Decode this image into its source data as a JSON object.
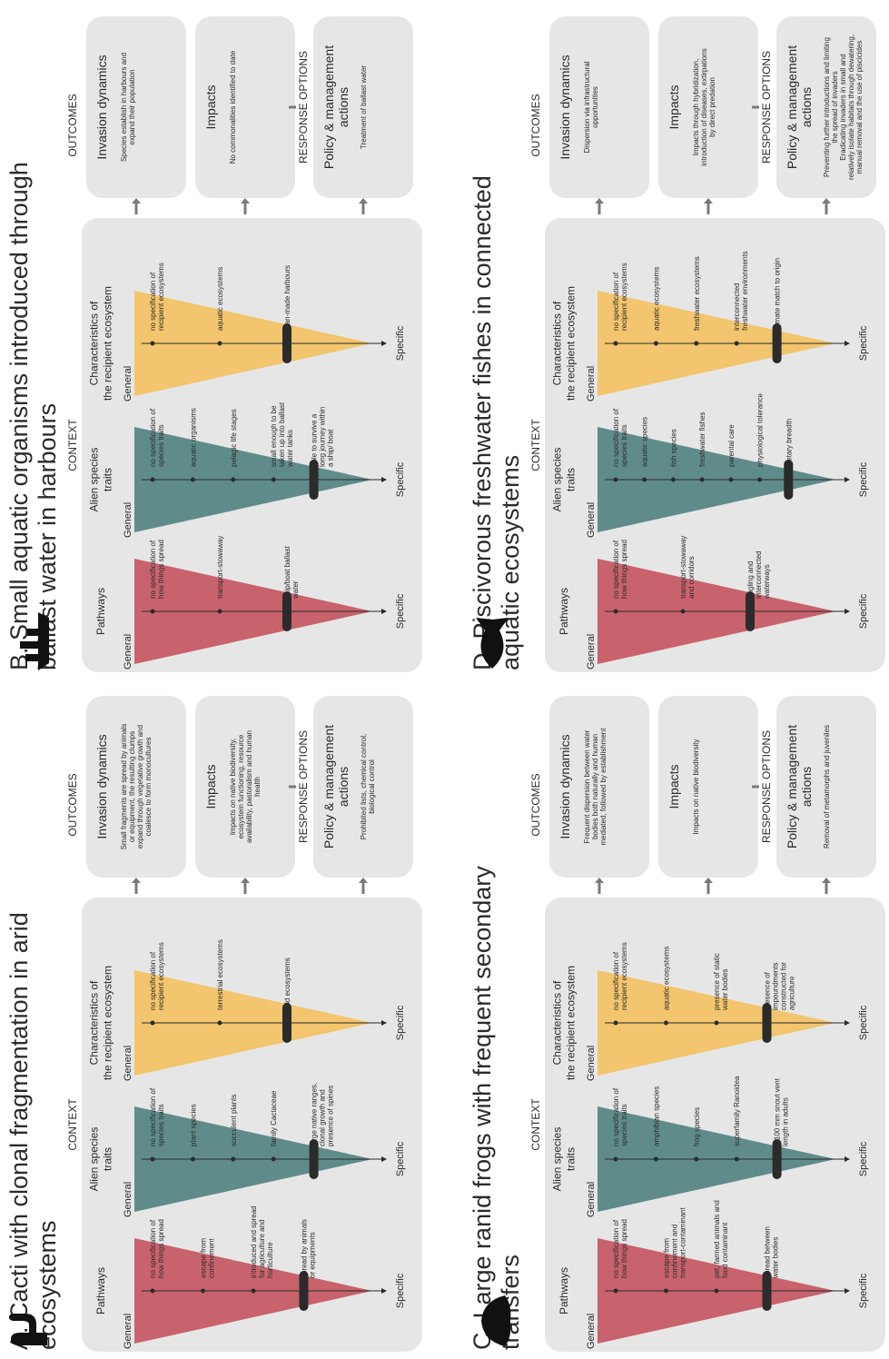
{
  "labels": {
    "context": "CONTEXT",
    "outcomes": "OUTCOMES",
    "response_options": "RESPONSE OPTIONS",
    "general": "General",
    "specific": "Specific",
    "pathways": "Pathways",
    "alien_traits": [
      "Alien species",
      "traits"
    ],
    "recipient": [
      "Characteristics of",
      "the recipient ecosystem"
    ],
    "invasion_dynamics": "Invasion dynamics",
    "impacts": "Impacts",
    "policy": [
      "Policy & management",
      "actions"
    ]
  },
  "colors": {
    "pathways": "#c8626c",
    "traits": "#5f8c8a",
    "recipient": "#f2c56e",
    "panel": "#e6e6e6",
    "marker": "#2b2b2b",
    "arrow": "#7a7a7a"
  },
  "panels": [
    {
      "id": "A",
      "title": [
        "A. Cacti with clonal fragmentation in arid",
        "ecosystems"
      ],
      "icon": "cactus-icon",
      "pathways": {
        "notes": [
          [
            "no specification of",
            "how things spread"
          ],
          [
            "escape from",
            "confinement"
          ],
          [
            "introduced and spread",
            "for agriculture and",
            "horticulture"
          ],
          [
            "spread by animals",
            "or equipments"
          ]
        ],
        "level": 4
      },
      "traits": {
        "notes": [
          [
            "no specification of",
            "species traits"
          ],
          [
            "plant species"
          ],
          [
            "succulent plants"
          ],
          [
            "family Cactaceae"
          ],
          [
            "large native ranges,",
            "clonal growth and",
            "presence of spines"
          ]
        ],
        "level": 5
      },
      "recipient": {
        "notes": [
          [
            "no specification of",
            "recipient ecosystems"
          ],
          [
            "terrestrial ecosystems"
          ],
          [
            "arid ecosystems"
          ]
        ],
        "level": 3
      },
      "invasion_text": [
        "Small fragments are spread by animals",
        "or equipment, the resulting clumps",
        "expand through vegetative growth and",
        "coalesce to form monocultures"
      ],
      "impacts_text": [
        "Impacts on native biodiversity,",
        "ecosystem functioning, resource",
        "availability, pastoralism and human",
        "health"
      ],
      "policy_text": [
        "Prohibited lists, chemical control,",
        "biological control"
      ]
    },
    {
      "id": "B",
      "title": [
        "B. Small aquatic organisms introduced through",
        "ballast water in harbours"
      ],
      "icon": "ship-icon",
      "pathways": {
        "notes": [
          [
            "no specification of",
            "how things spread"
          ],
          [
            "transport-stowaway"
          ],
          [
            "ship/boat ballast",
            "water"
          ]
        ],
        "level": 3
      },
      "traits": {
        "notes": [
          [
            "no specification of",
            "species traits"
          ],
          [
            "aquatic organisms"
          ],
          [
            "pelagic life stages"
          ],
          [
            "small enough to be",
            "taken up into ballast",
            "water tanks"
          ],
          [
            "able to survive a",
            "long journey within",
            "a ship/ boat"
          ]
        ],
        "level": 5
      },
      "recipient": {
        "notes": [
          [
            "no specification of",
            "recipient ecosystems"
          ],
          [
            "aquatic ecosystems"
          ],
          [
            "man-made harbours"
          ]
        ],
        "level": 3
      },
      "invasion_text": [
        "Species establish in harbours and",
        "expand their population"
      ],
      "impacts_text": [
        "No commonalities identified to date"
      ],
      "policy_text": [
        "Treatment of ballast water"
      ]
    },
    {
      "id": "C",
      "title": [
        "C. Large ranid frogs with frequent secondary",
        "transfers"
      ],
      "icon": "frog-icon",
      "pathways": {
        "notes": [
          [
            "no specification of",
            "how things spread"
          ],
          [
            "escape from",
            "confinement and",
            "transport-contaminant"
          ],
          [
            "pet, farmed animals and",
            "food contaminant"
          ],
          [
            "spread between",
            "water bodies"
          ]
        ],
        "level": 4
      },
      "traits": {
        "notes": [
          [
            "no specification of",
            "species traits"
          ],
          [
            "amphibian species"
          ],
          [
            "frog species"
          ],
          [
            "superfamily Ranoidea"
          ],
          [
            "> 100 mm snout vent",
            "length in adults"
          ]
        ],
        "level": 5
      },
      "recipient": {
        "notes": [
          [
            "no specification of",
            "recipient ecosystems"
          ],
          [
            "aquatic ecosystems"
          ],
          [
            "presence of static",
            "water bodies"
          ],
          [
            "presence of",
            "impoundments",
            "constructed for",
            "agriculture"
          ]
        ],
        "level": 4
      },
      "invasion_text": [
        "Frequent dispersion between water",
        "bodies both naturally and human",
        "mediated, followed by establishment"
      ],
      "impacts_text": [
        "Impacts on native biodiversity"
      ],
      "policy_text": [
        "Removal of metamorphs and juveniles"
      ]
    },
    {
      "id": "D",
      "title": [
        "D. Piscivorous freshwater fishes in connected",
        "aquatic ecosystems"
      ],
      "icon": "fish-icon",
      "pathways": {
        "notes": [
          [
            "no specification of",
            "how things spread"
          ],
          [
            "transport-stowaway",
            "and corridors"
          ],
          [
            "angling and",
            "interconnected",
            "waterways"
          ]
        ],
        "level": 3
      },
      "traits": {
        "notes": [
          [
            "no specification of",
            "species traits"
          ],
          [
            "aquatic species"
          ],
          [
            "fish species"
          ],
          [
            "freshwater fishes"
          ],
          [
            "parental care"
          ],
          [
            "physiological tolerance"
          ],
          [
            "dietary breadth"
          ]
        ],
        "level": 7
      },
      "recipient": {
        "notes": [
          [
            "no specification of",
            "recipient ecosystems"
          ],
          [
            "aquatic ecosystems"
          ],
          [
            "freshwater ecosystems"
          ],
          [
            "interconnected",
            "freshwater environments"
          ],
          [
            "climate match to origin"
          ]
        ],
        "level": 5
      },
      "invasion_text": [
        "Dispersion via infrastructural",
        "opportunities"
      ],
      "impacts_text": [
        "Impacts through hybridization,",
        "introduction of diseases, extirpations",
        "by direct predation"
      ],
      "policy_text": [
        "Preventing further introductions and limiting",
        "the spread of invaders",
        "Eradicating invaders in small and",
        "relatively isolate habitats through dewatering,",
        "manual removal and the use of piscicides"
      ]
    }
  ]
}
